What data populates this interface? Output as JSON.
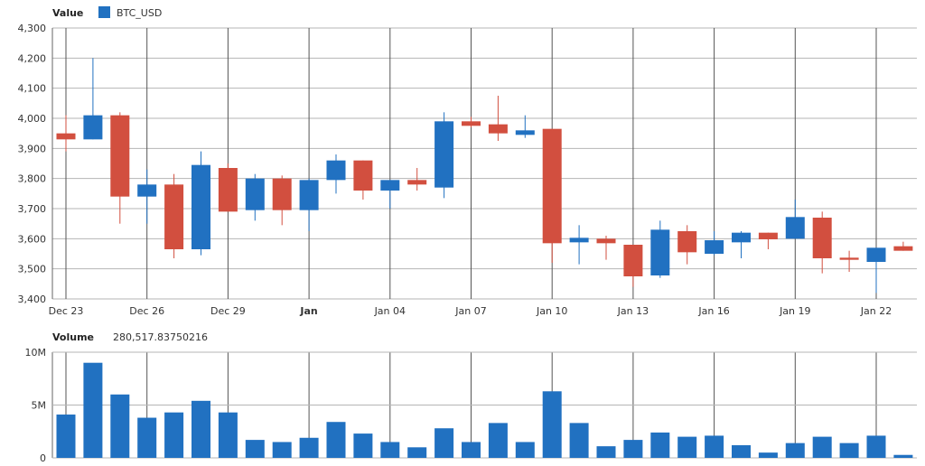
{
  "colors": {
    "up": "#2171c1",
    "down": "#d24f3f",
    "grid": "#b5b5b5",
    "vgrid": "#555555"
  },
  "chart_data": [
    {
      "type": "candlestick",
      "legend_title": "Value",
      "series_name": "BTC_USD",
      "x_ticks": [
        {
          "day": 0,
          "label": "Dec 23",
          "bold": false
        },
        {
          "day": 3,
          "label": "Dec 26",
          "bold": false
        },
        {
          "day": 6,
          "label": "Dec 29",
          "bold": false
        },
        {
          "day": 9,
          "label": "Jan",
          "bold": true
        },
        {
          "day": 12,
          "label": "Jan 04",
          "bold": false
        },
        {
          "day": 15,
          "label": "Jan 07",
          "bold": false
        },
        {
          "day": 18,
          "label": "Jan 10",
          "bold": false
        },
        {
          "day": 21,
          "label": "Jan 13",
          "bold": false
        },
        {
          "day": 24,
          "label": "Jan 16",
          "bold": false
        },
        {
          "day": 27,
          "label": "Jan 19",
          "bold": false
        },
        {
          "day": 30,
          "label": "Jan 22",
          "bold": false
        }
      ],
      "y_ticks": [
        "3,400",
        "3,500",
        "3,600",
        "3,700",
        "3,800",
        "3,900",
        "4,000",
        "4,100",
        "4,200",
        "4,300"
      ],
      "ylim": [
        3400,
        4300
      ],
      "candles": [
        {
          "day": 0,
          "open": 3950,
          "high": 4010,
          "low": 3890,
          "close": 3930
        },
        {
          "day": 1,
          "open": 3930,
          "high": 4200,
          "low": 3930,
          "close": 4010
        },
        {
          "day": 2,
          "open": 4010,
          "high": 4020,
          "low": 3650,
          "close": 3740
        },
        {
          "day": 3,
          "open": 3740,
          "high": 3830,
          "low": 3650,
          "close": 3780
        },
        {
          "day": 4,
          "open": 3780,
          "high": 3815,
          "low": 3535,
          "close": 3565
        },
        {
          "day": 5,
          "open": 3565,
          "high": 3890,
          "low": 3545,
          "close": 3845
        },
        {
          "day": 6,
          "open": 3835,
          "high": 3850,
          "low": 3690,
          "close": 3690
        },
        {
          "day": 7,
          "open": 3695,
          "high": 3815,
          "low": 3660,
          "close": 3800
        },
        {
          "day": 8,
          "open": 3800,
          "high": 3810,
          "low": 3645,
          "close": 3695
        },
        {
          "day": 9,
          "open": 3695,
          "high": 3800,
          "low": 3625,
          "close": 3795
        },
        {
          "day": 10,
          "open": 3795,
          "high": 3880,
          "low": 3750,
          "close": 3860
        },
        {
          "day": 11,
          "open": 3860,
          "high": 3860,
          "low": 3730,
          "close": 3760
        },
        {
          "day": 12,
          "open": 3760,
          "high": 3795,
          "low": 3700,
          "close": 3795
        },
        {
          "day": 13,
          "open": 3795,
          "high": 3835,
          "low": 3760,
          "close": 3780
        },
        {
          "day": 14,
          "open": 3770,
          "high": 4020,
          "low": 3735,
          "close": 3990
        },
        {
          "day": 15,
          "open": 3990,
          "high": 4005,
          "low": 3970,
          "close": 3975
        },
        {
          "day": 16,
          "open": 3980,
          "high": 4075,
          "low": 3925,
          "close": 3950
        },
        {
          "day": 17,
          "open": 3945,
          "high": 4010,
          "low": 3935,
          "close": 3960
        },
        {
          "day": 18,
          "open": 3965,
          "high": 3965,
          "low": 3520,
          "close": 3585
        },
        {
          "day": 19,
          "open": 3588,
          "high": 3645,
          "low": 3515,
          "close": 3603
        },
        {
          "day": 20,
          "open": 3600,
          "high": 3610,
          "low": 3530,
          "close": 3585
        },
        {
          "day": 21,
          "open": 3580,
          "high": 3580,
          "low": 3440,
          "close": 3475
        },
        {
          "day": 22,
          "open": 3478,
          "high": 3660,
          "low": 3470,
          "close": 3630
        },
        {
          "day": 23,
          "open": 3625,
          "high": 3645,
          "low": 3515,
          "close": 3555
        },
        {
          "day": 24,
          "open": 3550,
          "high": 3625,
          "low": 3545,
          "close": 3595
        },
        {
          "day": 25,
          "open": 3588,
          "high": 3625,
          "low": 3535,
          "close": 3620
        },
        {
          "day": 26,
          "open": 3620,
          "high": 3620,
          "low": 3565,
          "close": 3598
        },
        {
          "day": 27,
          "open": 3600,
          "high": 3730,
          "low": 3600,
          "close": 3672
        },
        {
          "day": 28,
          "open": 3670,
          "high": 3690,
          "low": 3485,
          "close": 3535
        },
        {
          "day": 29,
          "open": 3537,
          "high": 3560,
          "low": 3490,
          "close": 3530
        },
        {
          "day": 30,
          "open": 3523,
          "high": 3570,
          "low": 3420,
          "close": 3570
        },
        {
          "day": 31,
          "open": 3575,
          "high": 3590,
          "low": 3560,
          "close": 3560
        }
      ]
    },
    {
      "type": "bar",
      "legend_title": "Volume",
      "legend_value": "280,517.83750216",
      "y_ticks": [
        "0",
        "5M",
        "10M"
      ],
      "ylim": [
        0,
        10000000
      ],
      "values": [
        4100000,
        9000000,
        6000000,
        3800000,
        4300000,
        5400000,
        4300000,
        1700000,
        1500000,
        1900000,
        3400000,
        2300000,
        1500000,
        1000000,
        2800000,
        1500000,
        3300000,
        1500000,
        6300000,
        3300000,
        1100000,
        1700000,
        2400000,
        2000000,
        2100000,
        1200000,
        500000,
        1400000,
        2000000,
        1400000,
        2100000,
        280517.83750216
      ]
    }
  ]
}
